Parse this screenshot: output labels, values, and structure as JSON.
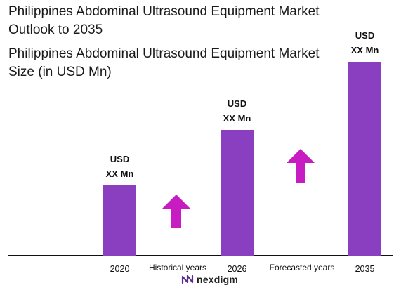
{
  "chart_data": {
    "type": "bar",
    "title": "Philippines Abdominal Ultrasound Equipment Market Outlook to 2035",
    "subtitle": "Philippines Abdominal Ultrasound Equipment Market Size (in USD Mn)",
    "categories": [
      "2020",
      "2026",
      "2035"
    ],
    "values": [
      100,
      179,
      276
    ],
    "ylim": [
      0,
      300
    ],
    "bar_labels": [
      {
        "line1": "USD",
        "line2": "XX Mn"
      },
      {
        "line1": "USD",
        "line2": "XX Mn"
      },
      {
        "line1": "USD",
        "line2": "XX Mn"
      }
    ],
    "regions": [
      "Historical years",
      "Forecasted years"
    ],
    "grid": false,
    "legend": "none",
    "bar_color": "#8A3FC1",
    "arrow_color": "#C61CC2"
  },
  "brand": {
    "name": "nexdigm",
    "color": "#5B2D8E"
  }
}
